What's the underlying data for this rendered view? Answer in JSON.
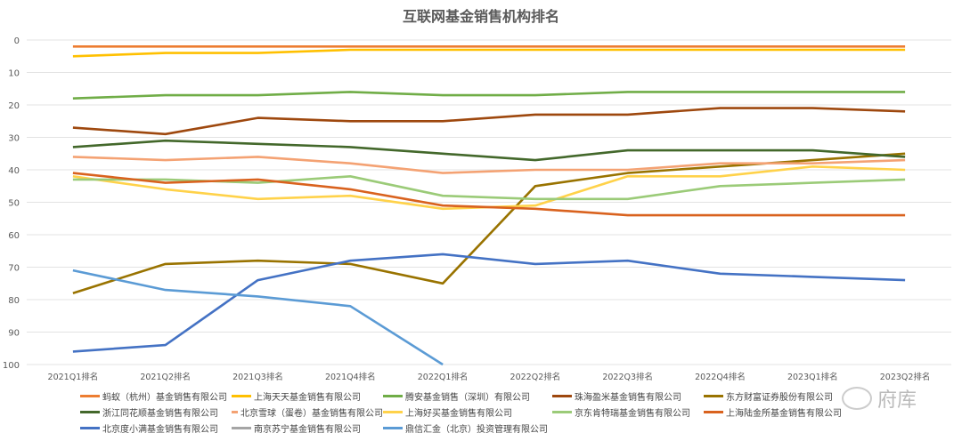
{
  "chart_data": {
    "type": "line",
    "title": "互联网基金销售机构排名",
    "categories": [
      "2021Q1排名",
      "2021Q2排名",
      "2021Q3排名",
      "2021Q4排名",
      "2022Q1排名",
      "2022Q2排名",
      "2022Q3排名",
      "2022Q4排名",
      "2023Q1排名",
      "2023Q2排名"
    ],
    "ylim": [
      0,
      100
    ],
    "y_reversed": true,
    "yticks": [
      0,
      10,
      20,
      30,
      40,
      50,
      60,
      70,
      80,
      90,
      100
    ],
    "grid": true,
    "legend_placement": "bottom",
    "series": [
      {
        "name": "蚂蚁（杭州）基金销售有限公司",
        "color": "#ED7D31",
        "values": [
          2,
          2,
          2,
          2,
          2,
          2,
          2,
          2,
          2,
          2
        ]
      },
      {
        "name": "上海天天基金销售有限公司",
        "color": "#FFC000",
        "values": [
          5,
          4,
          4,
          3,
          3,
          3,
          3,
          3,
          3,
          3
        ]
      },
      {
        "name": "腾安基金销售（深圳）有限公司",
        "color": "#70AD47",
        "values": [
          18,
          17,
          17,
          16,
          17,
          17,
          16,
          16,
          16,
          16
        ]
      },
      {
        "name": "珠海盈米基金销售有限公司",
        "color": "#9E480E",
        "values": [
          27,
          29,
          24,
          25,
          25,
          23,
          23,
          21,
          21,
          22
        ]
      },
      {
        "name": "东方财富证券股份有限公司",
        "color": "#997300",
        "values": [
          78,
          69,
          68,
          69,
          75,
          45,
          41,
          39,
          37,
          35
        ]
      },
      {
        "name": "浙江同花顺基金销售有限公司",
        "color": "#43682B",
        "values": [
          33,
          31,
          32,
          33,
          35,
          37,
          34,
          34,
          34,
          36
        ]
      },
      {
        "name": "北京雪球（蛋卷）基金销售有限公司",
        "color": "#F4A273",
        "values": [
          36,
          37,
          36,
          38,
          41,
          40,
          40,
          38,
          38,
          37
        ]
      },
      {
        "name": "上海好买基金销售有限公司",
        "color": "#FFD24A",
        "values": [
          42,
          46,
          49,
          48,
          52,
          51,
          42,
          42,
          39,
          40
        ]
      },
      {
        "name": "京东肯特瑞基金销售有限公司",
        "color": "#9BCB78",
        "values": [
          43,
          43,
          44,
          42,
          48,
          49,
          49,
          45,
          44,
          43
        ]
      },
      {
        "name": "上海陆金所基金销售有限公司",
        "color": "#D9621E",
        "values": [
          41,
          44,
          43,
          46,
          51,
          52,
          54,
          54,
          54,
          54
        ]
      },
      {
        "name": "北京度小满基金销售有限公司",
        "color": "#4472C4",
        "values": [
          96,
          94,
          74,
          68,
          66,
          69,
          68,
          72,
          73,
          74
        ]
      },
      {
        "name": "南京苏宁基金销售有限公司",
        "color": "#A5A5A5",
        "values": [
          null,
          null,
          null,
          null,
          null,
          null,
          null,
          null,
          null,
          null
        ]
      },
      {
        "name": "鼎信汇金（北京）投资管理有限公司",
        "color": "#5B9BD5",
        "values": [
          71,
          77,
          79,
          82,
          100,
          null,
          null,
          null,
          null,
          null
        ]
      }
    ]
  },
  "watermark": "府库"
}
